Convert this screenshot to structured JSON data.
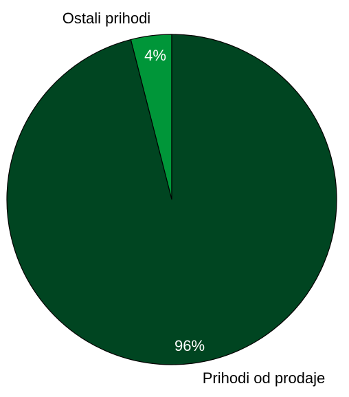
{
  "chart_data": {
    "type": "pie",
    "title": "",
    "slices": [
      {
        "label": "Ostali prihodi",
        "value": 4,
        "value_label": "4%",
        "color": "#009639"
      },
      {
        "label": "Prihodi od prodaje",
        "value": 96,
        "value_label": "96%",
        "color": "#004521"
      }
    ],
    "start": "top, clockwise",
    "stroke_color": "#000000",
    "value_label_color": "#ffffff",
    "category_label_color": "#000000",
    "legend": "none"
  }
}
